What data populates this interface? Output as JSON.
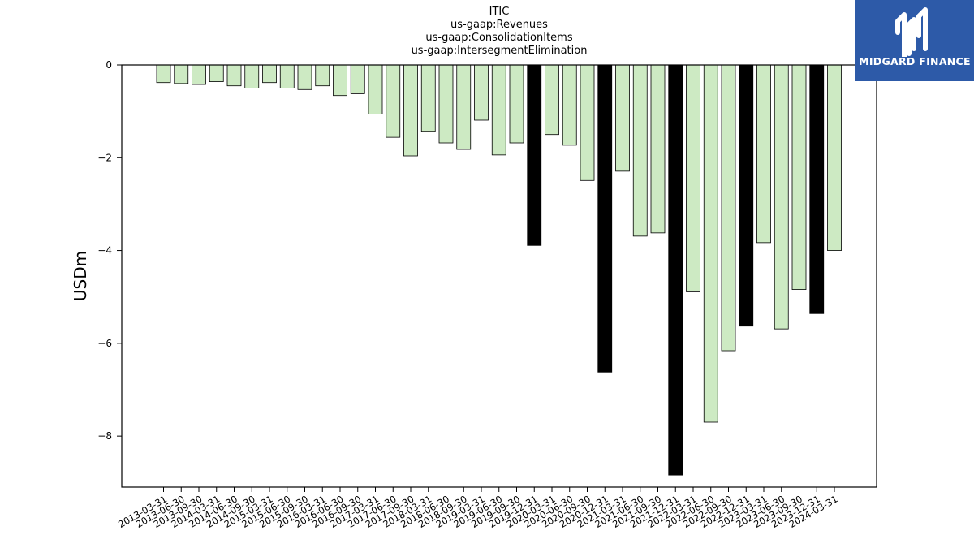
{
  "title": {
    "line1": "ITIC",
    "line2": "us-gaap:Revenues",
    "line3": "us-gaap:ConsolidationItems",
    "line4": "us-gaap:IntersegmentElimination"
  },
  "logo": {
    "text": "MIDGARD FINANCE",
    "icon": "midgard-logo-icon",
    "background": "#2d5aa8"
  },
  "chart_data": {
    "type": "bar",
    "title": "ITIC us-gaap:Revenues us-gaap:ConsolidationItems us-gaap:IntersegmentElimination",
    "xlabel": "",
    "ylabel": "USDm",
    "ylim": [
      -9.1,
      0
    ],
    "yticks": [
      0,
      -2,
      -4,
      -6,
      -8
    ],
    "grid": false,
    "colors": {
      "quarter": "#cdeac3",
      "annual": "#000000",
      "edge": "#000000"
    },
    "categories": [
      "2013-03-31",
      "2013-06-30",
      "2013-09-30",
      "2014-03-31",
      "2014-06-30",
      "2014-09-30",
      "2015-03-31",
      "2015-06-30",
      "2015-09-30",
      "2016-03-31",
      "2016-06-30",
      "2016-09-30",
      "2017-03-31",
      "2017-06-30",
      "2017-09-30",
      "2018-03-31",
      "2018-06-30",
      "2018-09-30",
      "2019-03-31",
      "2019-06-30",
      "2019-09-30",
      "2019-12-31",
      "2020-03-31",
      "2020-06-30",
      "2020-09-30",
      "2020-12-31",
      "2021-03-31",
      "2021-06-30",
      "2021-09-30",
      "2021-12-31",
      "2022-03-31",
      "2022-06-30",
      "2022-09-30",
      "2022-12-31",
      "2023-03-31",
      "2023-06-30",
      "2023-09-30",
      "2023-12-31",
      "2024-03-31"
    ],
    "values": [
      -0.38,
      -0.4,
      -0.42,
      -0.36,
      -0.45,
      -0.5,
      -0.38,
      -0.5,
      -0.53,
      -0.45,
      -0.66,
      -0.62,
      -1.06,
      -1.56,
      -1.96,
      -1.43,
      -1.68,
      -1.82,
      -1.19,
      -1.94,
      -1.68,
      -3.89,
      -1.5,
      -1.73,
      -2.49,
      -6.62,
      -2.29,
      -3.69,
      -3.62,
      -8.84,
      -4.89,
      -7.7,
      -6.16,
      -5.63,
      -3.83,
      -5.69,
      -4.84,
      -5.36,
      -4.0
    ],
    "annual": [
      false,
      false,
      false,
      false,
      false,
      false,
      false,
      false,
      false,
      false,
      false,
      false,
      false,
      false,
      false,
      false,
      false,
      false,
      false,
      false,
      false,
      true,
      false,
      false,
      false,
      true,
      false,
      false,
      false,
      true,
      false,
      false,
      false,
      true,
      false,
      false,
      false,
      true,
      false
    ]
  }
}
